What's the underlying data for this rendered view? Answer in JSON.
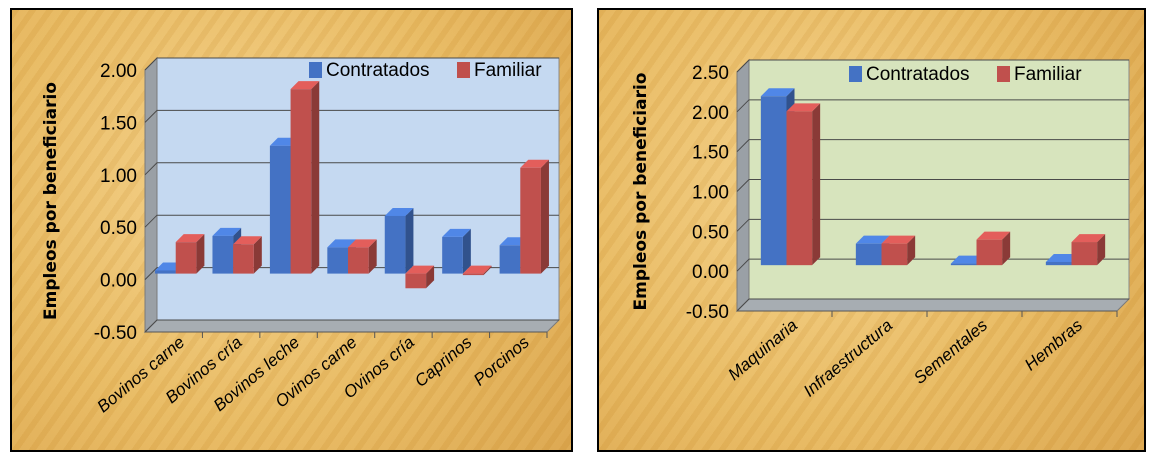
{
  "chart_data": [
    {
      "type": "bar",
      "title": "",
      "xlabel": "",
      "ylabel": "Empleos por beneficiario",
      "ylim": [
        -0.5,
        2.0
      ],
      "yticks": [
        "2.00",
        "1.50",
        "1.00",
        "0.50",
        "0.00",
        "-0.50"
      ],
      "categories": [
        "Bovinos carne",
        "Bovinos cría",
        "Bovinos leche",
        "Ovinos carne",
        "Ovinos cría",
        "Caprinos",
        "Porcinos"
      ],
      "series": [
        {
          "name": "Contratados",
          "color": "#4472c4",
          "values": [
            0.03,
            0.36,
            1.22,
            0.25,
            0.55,
            0.35,
            0.27
          ]
        },
        {
          "name": "Familiar",
          "color": "#c0504d",
          "values": [
            0.3,
            0.28,
            1.76,
            0.25,
            -0.14,
            0.0,
            1.01
          ]
        }
      ],
      "legend": "top-right",
      "grid": true,
      "background": "#c5d9f1"
    },
    {
      "type": "bar",
      "title": "",
      "xlabel": "",
      "ylabel": "Empleos por beneficiario",
      "ylim": [
        -0.5,
        2.5
      ],
      "yticks": [
        "2.50",
        "2.00",
        "1.50",
        "1.00",
        "0.50",
        "0.00",
        "-0.50"
      ],
      "categories": [
        "Maquinaria",
        "Infraestructura",
        "Sementales",
        "Hembras"
      ],
      "series": [
        {
          "name": "Contratados",
          "color": "#4472c4",
          "values": [
            2.12,
            0.27,
            0.02,
            0.04
          ]
        },
        {
          "name": "Familiar",
          "color": "#c0504d",
          "values": [
            1.93,
            0.27,
            0.32,
            0.29
          ]
        }
      ],
      "legend": "top-right",
      "grid": true,
      "background": "#d7e4bd"
    }
  ]
}
